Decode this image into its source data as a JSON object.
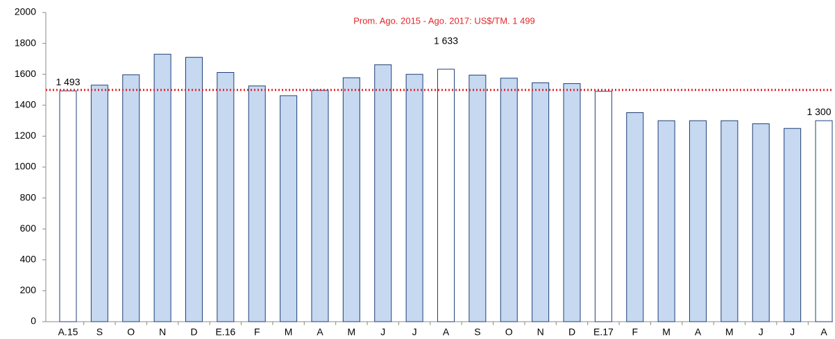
{
  "chart_data": {
    "type": "bar",
    "annotation": "Prom. Ago. 2015 - Ago. 2017: US$/TM. 1 499",
    "average": 1499,
    "average_color": "#e3262b",
    "categories": [
      "A.15",
      "S",
      "O",
      "N",
      "D",
      "E.16",
      "F",
      "M",
      "A",
      "M",
      "J",
      "J",
      "A",
      "S",
      "O",
      "N",
      "D",
      "E.17",
      "F",
      "M",
      "A",
      "M",
      "J",
      "J",
      "A"
    ],
    "values": [
      1493,
      1530,
      1597,
      1730,
      1710,
      1612,
      1525,
      1462,
      1497,
      1578,
      1662,
      1600,
      1633,
      1595,
      1575,
      1545,
      1540,
      1490,
      1352,
      1300,
      1300,
      1300,
      1280,
      1250,
      1300
    ],
    "value_labels": [
      "1 493",
      null,
      null,
      null,
      null,
      null,
      null,
      null,
      null,
      null,
      null,
      null,
      "1 633",
      null,
      null,
      null,
      null,
      null,
      null,
      null,
      null,
      null,
      null,
      null,
      "1 300"
    ],
    "colors": [
      "#ffffff",
      "#c6d9f1",
      "#c6d9f1",
      "#c6d9f1",
      "#c6d9f1",
      "#c6d9f1",
      "#c6d9f1",
      "#c6d9f1",
      "#c6d9f1",
      "#c6d9f1",
      "#c6d9f1",
      "#c6d9f1",
      "#ffffff",
      "#c6d9f1",
      "#c6d9f1",
      "#c6d9f1",
      "#c6d9f1",
      "#ffffff",
      "#c6d9f1",
      "#c6d9f1",
      "#c6d9f1",
      "#c6d9f1",
      "#c6d9f1",
      "#c6d9f1",
      "#ffffff"
    ],
    "ylim": [
      0,
      2000
    ],
    "yticks": [
      0,
      200,
      400,
      600,
      800,
      1000,
      1200,
      1400,
      1600,
      1800,
      2000
    ]
  }
}
